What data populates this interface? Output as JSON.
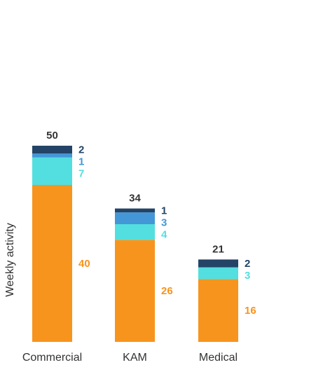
{
  "chart_data": {
    "type": "bar",
    "stacked": true,
    "title": "",
    "xlabel": "",
    "ylabel": "Weekly activity",
    "categories": [
      "Commercial",
      "KAM",
      "Medical"
    ],
    "series": [
      {
        "values": [
          40,
          26,
          16
        ],
        "color": "#F7941D"
      },
      {
        "values": [
          7,
          4,
          3
        ],
        "color": "#53DFDF"
      },
      {
        "values": [
          1,
          3,
          0
        ],
        "color": "#4397D6"
      },
      {
        "values": [
          2,
          1,
          2
        ],
        "color": "#234466"
      }
    ],
    "totals": [
      50,
      34,
      21
    ],
    "grid": false,
    "legend": "none"
  }
}
